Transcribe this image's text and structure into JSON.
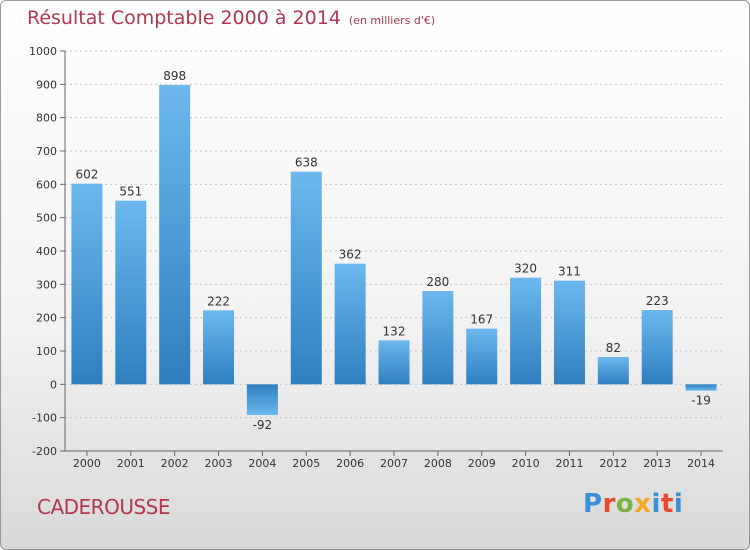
{
  "header": {
    "title": "Résultat Comptable 2000 à 2014",
    "unit": "(en milliers d'€)"
  },
  "commune": "CADEROUSSE",
  "logo": {
    "l1": "P",
    "l2": "r",
    "l3": "o",
    "l4": "x",
    "l5": "i",
    "l6": "t",
    "l7": "i"
  },
  "colors": {
    "bar_light": "#6cb8ee",
    "bar_dark": "#2f7fc0",
    "title": "#b2374f",
    "axis": "#666666"
  },
  "chart_data": {
    "type": "bar",
    "title": "Résultat Comptable 2000 à 2014",
    "xlabel": "",
    "ylabel": "",
    "ylim": [
      -200,
      1000
    ],
    "yticks": [
      -200,
      -100,
      0,
      100,
      200,
      300,
      400,
      500,
      600,
      700,
      800,
      900,
      1000
    ],
    "grid": true,
    "categories": [
      "2000",
      "2001",
      "2002",
      "2003",
      "2004",
      "2005",
      "2006",
      "2007",
      "2008",
      "2009",
      "2010",
      "2011",
      "2012",
      "2013",
      "2014"
    ],
    "values": [
      602,
      551,
      898,
      222,
      -92,
      638,
      362,
      132,
      280,
      167,
      320,
      311,
      82,
      223,
      -19
    ]
  }
}
